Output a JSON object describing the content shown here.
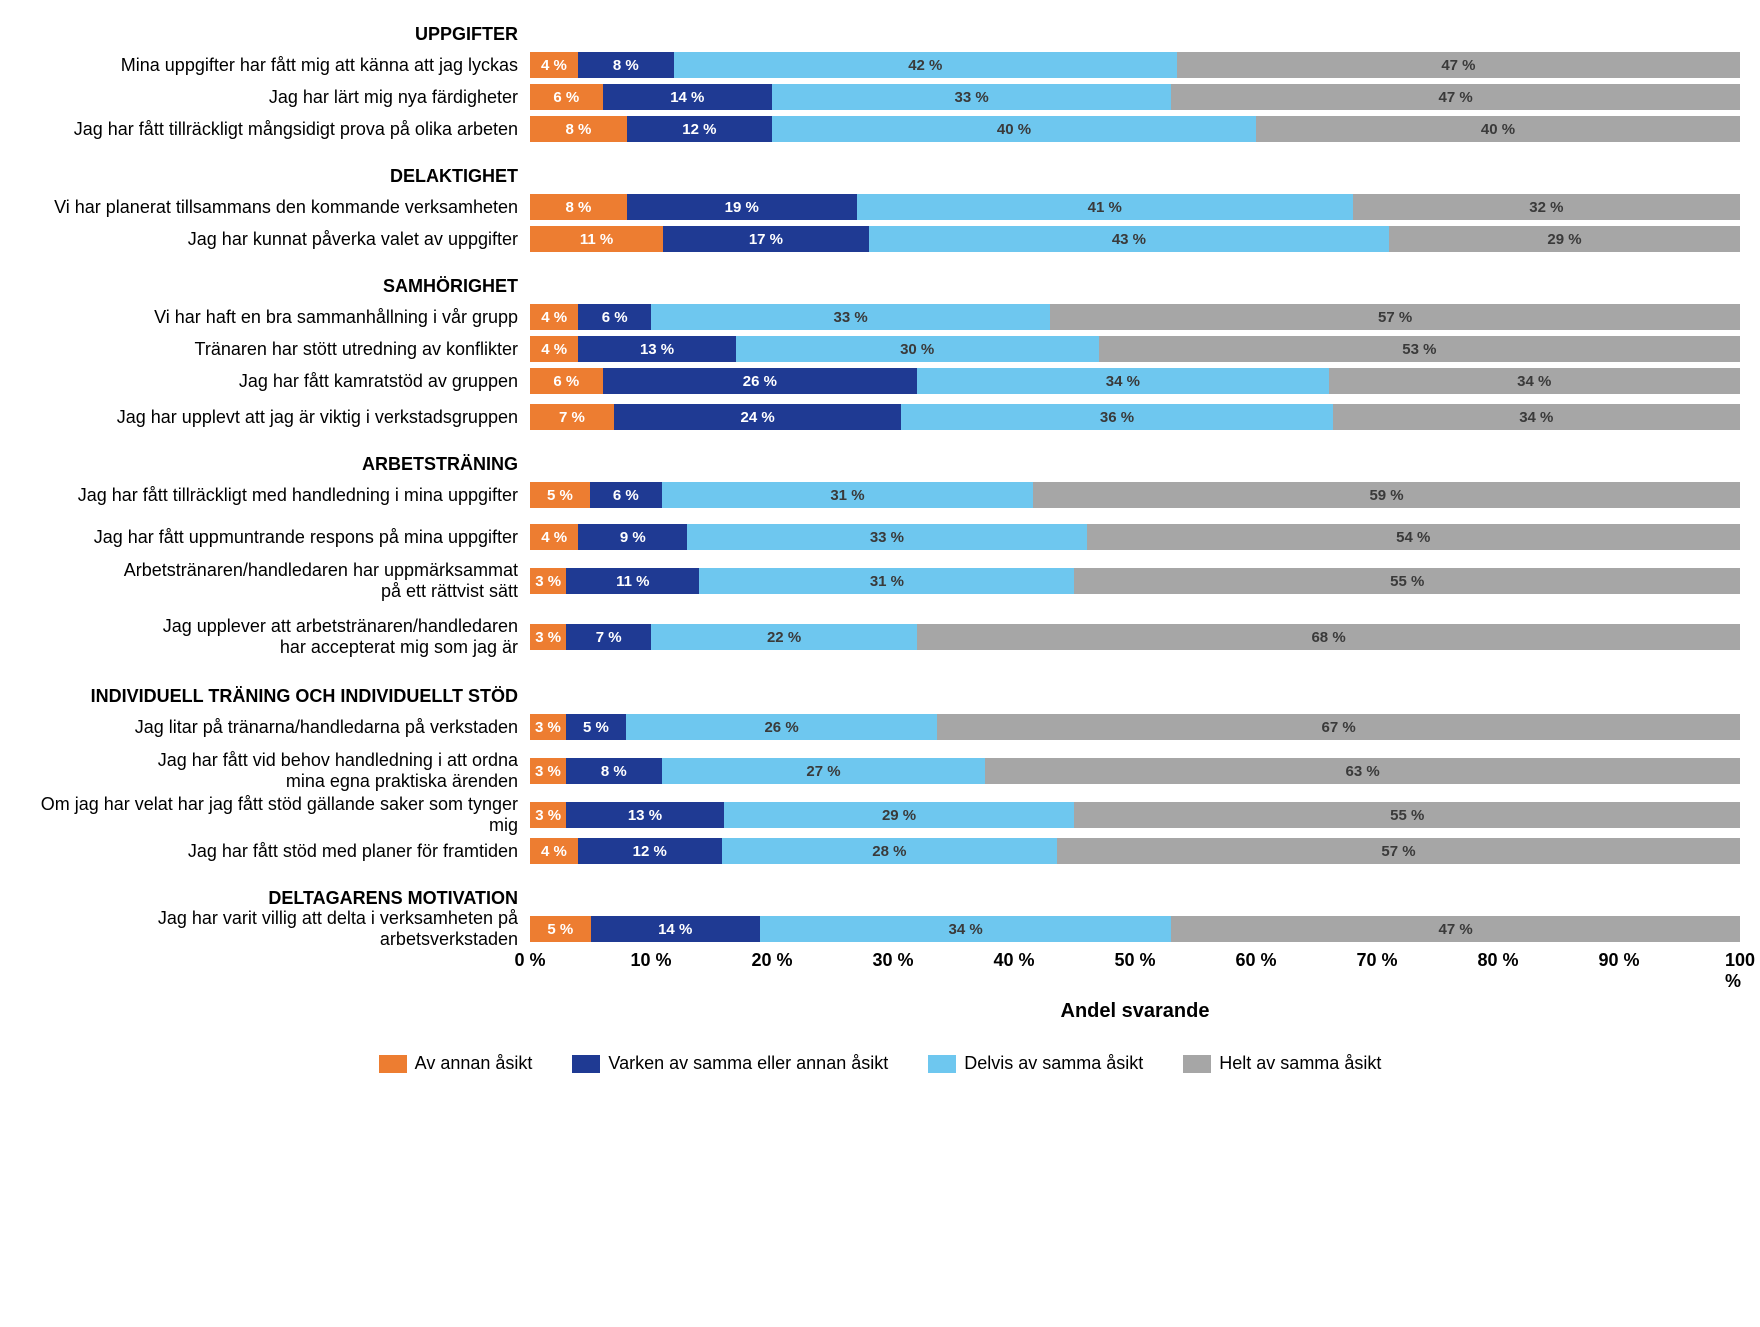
{
  "chart": {
    "type": "stacked-bar-horizontal",
    "xlim": [
      0,
      100
    ],
    "xtick_step": 10,
    "xticks": [
      "0 %",
      "10 %",
      "20 %",
      "30 %",
      "40 %",
      "50 %",
      "60 %",
      "70 %",
      "80 %",
      "90 %",
      "100 %"
    ],
    "axis_title": "Andel svarande",
    "background_color": "#ffffff",
    "label_fontsize": 18,
    "value_fontsize": 15,
    "axis_fontsize": 18,
    "colors": {
      "c1": "#ed7d31",
      "c2": "#1f3a93",
      "c3": "#6ec7ef",
      "c4": "#a6a6a6"
    },
    "text_color_on_dark": "#ffffff",
    "text_color_on_light": "#3a3a3a",
    "legend": [
      {
        "key": "c1",
        "label": "Av annan åsikt"
      },
      {
        "key": "c2",
        "label": "Varken av samma eller annan åsikt"
      },
      {
        "key": "c3",
        "label": "Delvis av samma åsikt"
      },
      {
        "key": "c4",
        "label": "Helt av samma åsikt"
      }
    ],
    "sections": [
      {
        "title": "UPPGIFTER",
        "rows": [
          {
            "label": "Mina uppgifter har fått mig att känna att jag lyckas",
            "v": [
              4,
              8,
              42,
              47
            ],
            "hide": []
          },
          {
            "label": "Jag har lärt mig nya färdigheter",
            "v": [
              6,
              14,
              33,
              47
            ]
          },
          {
            "label": "Jag har fått tillräckligt mångsidigt prova på olika arbeten",
            "v": [
              8,
              12,
              40,
              40
            ]
          }
        ]
      },
      {
        "title": "DELAKTIGHET",
        "rows": [
          {
            "label": "Vi har planerat tillsammans den kommande verksamheten",
            "v": [
              8,
              19,
              41,
              32
            ]
          },
          {
            "label": "Jag har kunnat påverka valet av uppgifter",
            "v": [
              11,
              17,
              43,
              29
            ]
          }
        ]
      },
      {
        "title": "SAMHÖRIGHET",
        "rows": [
          {
            "label": "Vi har haft en bra sammanhållning i vår grupp",
            "v": [
              4,
              6,
              33,
              57
            ]
          },
          {
            "label": "Tränaren har stött utredning av konflikter",
            "v": [
              4,
              13,
              30,
              53
            ]
          },
          {
            "label": "Jag har fått kamratstöd av gruppen",
            "v": [
              6,
              26,
              34,
              34
            ]
          },
          {
            "label": "Jag har upplevt att jag är viktig i verkstadsgruppen",
            "v": [
              7,
              24,
              36,
              34
            ],
            "offset": true
          }
        ]
      },
      {
        "title": "ARBETSTRÄNING",
        "rows": [
          {
            "label": "Jag har fått tillräckligt med handledning i mina uppgifter",
            "v": [
              5,
              6,
              31,
              59
            ],
            "hide": []
          },
          {
            "label": "Jag har fått uppmuntrande respons på mina uppgifter",
            "v": [
              4,
              9,
              33,
              54
            ],
            "gap": true
          },
          {
            "label": "Arbetstränaren/handledaren har uppmärksammat\npå ett rättvist sätt",
            "v": [
              3,
              11,
              31,
              55
            ],
            "tall": true
          },
          {
            "label": "Jag upplever att arbetstränaren/handledaren\nhar accepterat mig som jag är",
            "v": [
              3,
              7,
              22,
              68
            ],
            "tall": true
          }
        ]
      },
      {
        "title": "INDIVIDUELL TRÄNING OCH INDIVIDUELLT STÖD",
        "rows": [
          {
            "label": "Jag litar på tränarna/handledarna på verkstaden",
            "v": [
              3,
              5,
              26,
              67
            ],
            "hide": []
          },
          {
            "label": "Jag har fått vid behov handledning i att ordna\nmina egna praktiska ärenden",
            "v": [
              3,
              8,
              27,
              63
            ],
            "tall": true
          },
          {
            "label": "Om jag har velat har jag fått stöd gällande saker som tynger mig",
            "v": [
              3,
              13,
              29,
              55
            ]
          },
          {
            "label": "Jag har fått stöd med planer för framtiden",
            "v": [
              4,
              12,
              28,
              57
            ],
            "offset": true
          }
        ]
      },
      {
        "title": "DELTAGARENS MOTIVATION",
        "rows": [
          {
            "label": "Jag har varit villig att delta i verksamheten på arbetsverkstaden",
            "v": [
              5,
              14,
              34,
              47
            ]
          }
        ]
      }
    ]
  }
}
